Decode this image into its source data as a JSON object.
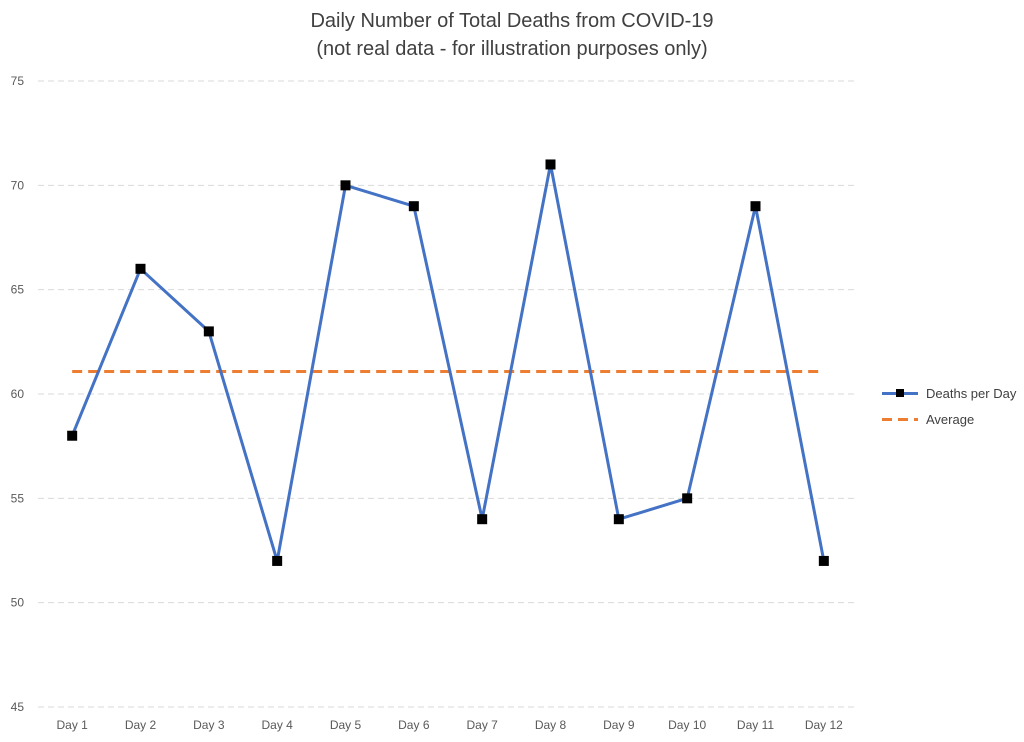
{
  "title": {
    "line1": "Daily Number of Total Deaths from COVID-19",
    "line2": "(not real data - for illustration purposes only)"
  },
  "colors": {
    "series_line": "#4472C4",
    "marker": "#000000",
    "average_line": "#ED7D31",
    "gridline": "#D9D9D9"
  },
  "legend": {
    "series_label": "Deaths per Day",
    "average_label": "Average"
  },
  "chart_data": {
    "type": "line",
    "title": "Daily Number of Total Deaths from COVID-19 (not real data - for illustration purposes only)",
    "categories": [
      "Day 1",
      "Day 2",
      "Day 3",
      "Day 4",
      "Day 5",
      "Day 6",
      "Day 7",
      "Day 8",
      "Day 9",
      "Day 10",
      "Day 11",
      "Day 12"
    ],
    "series": [
      {
        "name": "Deaths per Day",
        "values": [
          58,
          66,
          63,
          52,
          70,
          69,
          54,
          71,
          54,
          55,
          69,
          52
        ],
        "marker": "square"
      },
      {
        "name": "Average",
        "values": [
          61.08,
          61.08,
          61.08,
          61.08,
          61.08,
          61.08,
          61.08,
          61.08,
          61.08,
          61.08,
          61.08,
          61.08
        ],
        "style": "dashed"
      }
    ],
    "ylim": [
      45,
      75
    ],
    "yticks": [
      45,
      50,
      55,
      60,
      65,
      70,
      75
    ],
    "xlabel": "",
    "ylabel": "",
    "grid": "horizontal-dashed",
    "legend_position": "right"
  }
}
